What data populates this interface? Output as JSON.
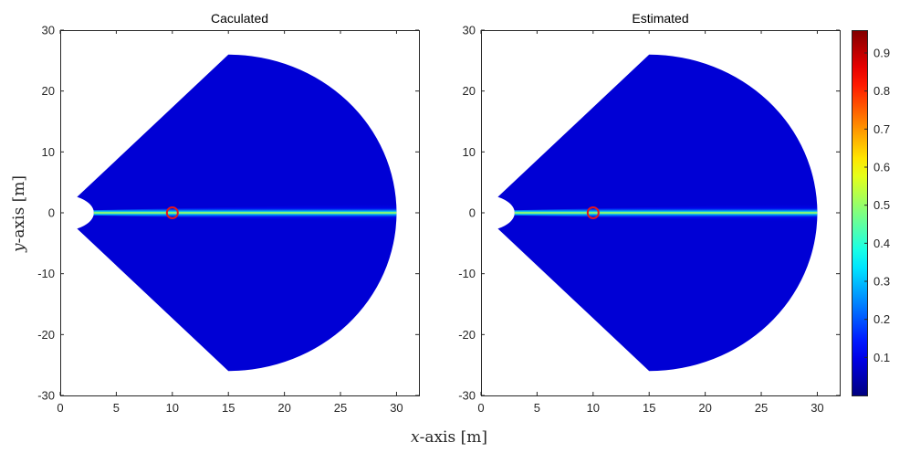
{
  "chart_data": {
    "type": "heatmap",
    "xlabel_var": "x",
    "xlabel_rest": "-axis [m]",
    "ylabel_var": "y",
    "ylabel_rest": "-axis [m]",
    "panels": [
      {
        "title": "Caculated",
        "xlim": [
          0,
          32
        ],
        "ylim": [
          -30,
          30
        ],
        "xticks": [
          0,
          5,
          10,
          15,
          20,
          25,
          30
        ],
        "yticks": [
          -30,
          -20,
          -10,
          0,
          10,
          20,
          30
        ],
        "show_ylabel": true,
        "region": {
          "apex_x": 0,
          "inner_radius": 3,
          "half_angle_deg": 60,
          "outer_radius": 30
        },
        "beam": {
          "y": 0,
          "peak_value": 0.55,
          "spread_m": 0.4
        },
        "marker": {
          "x": 10,
          "y": 0,
          "color": "#e0171f"
        },
        "background_value": 0.08
      },
      {
        "title": "Estimated",
        "xlim": [
          0,
          32
        ],
        "ylim": [
          -30,
          30
        ],
        "xticks": [
          0,
          5,
          10,
          15,
          20,
          25,
          30
        ],
        "yticks": [
          -30,
          -20,
          -10,
          0,
          10,
          20,
          30
        ],
        "show_ylabel": false,
        "region": {
          "apex_x": 0,
          "inner_radius": 3,
          "half_angle_deg": 60,
          "outer_radius": 30
        },
        "beam": {
          "y": 0,
          "peak_value": 0.55,
          "spread_m": 0.4
        },
        "marker": {
          "x": 10,
          "y": 0,
          "color": "#e0171f"
        },
        "background_value": 0.08
      }
    ],
    "colorbar": {
      "colormap": "jet",
      "range": [
        0,
        0.96
      ],
      "ticks": [
        0.1,
        0.2,
        0.3,
        0.4,
        0.5,
        0.6,
        0.7,
        0.8,
        0.9
      ]
    }
  }
}
